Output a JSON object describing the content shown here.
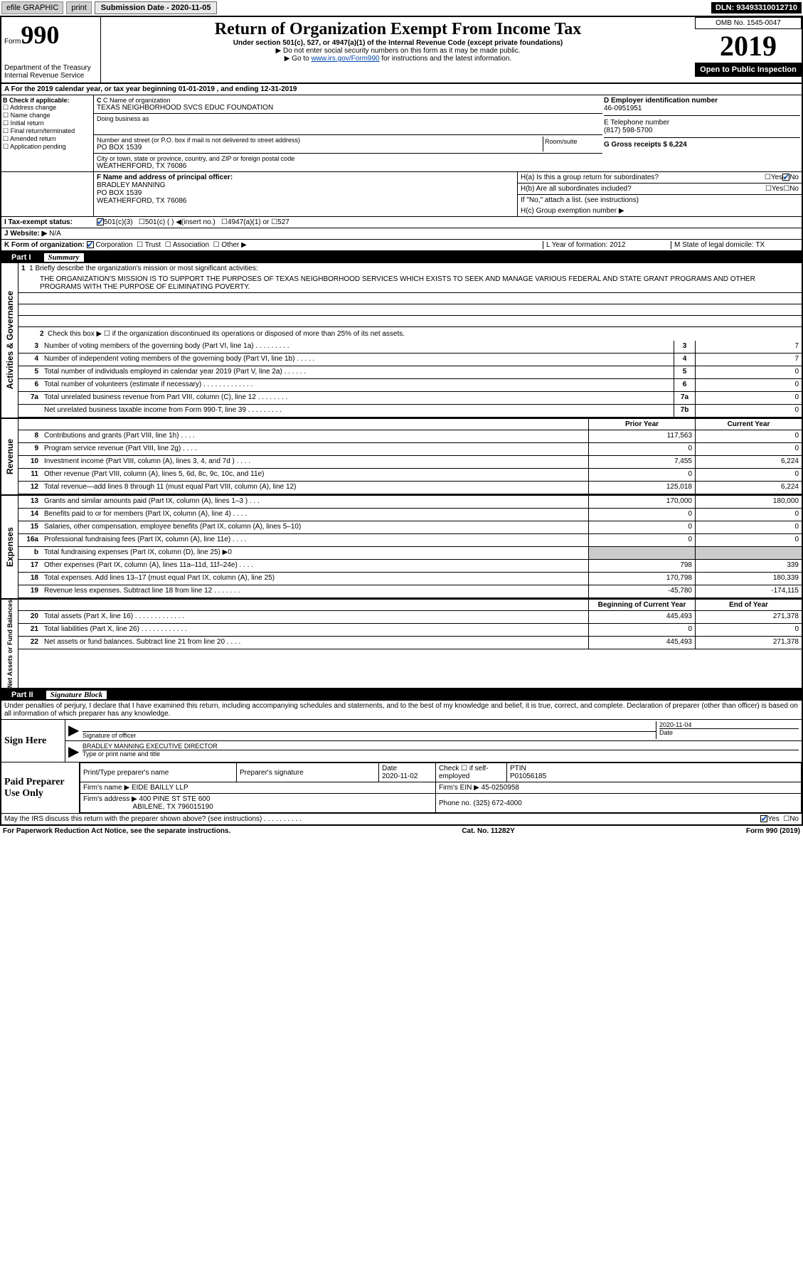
{
  "toolbar": {
    "efile": "efile GRAPHIC",
    "print": "print",
    "sub_label": "Submission Date - 2020-11-05",
    "dln": "DLN: 93493310012710"
  },
  "header": {
    "form_prefix": "Form",
    "form_num": "990",
    "dept": "Department of the Treasury\nInternal Revenue Service",
    "title": "Return of Organization Exempt From Income Tax",
    "sub1": "Under section 501(c), 527, or 4947(a)(1) of the Internal Revenue Code (except private foundations)",
    "sub2": "▶ Do not enter social security numbers on this form as it may be made public.",
    "sub3_pre": "▶ Go to ",
    "sub3_link": "www.irs.gov/Form990",
    "sub3_post": " for instructions and the latest information.",
    "omb": "OMB No. 1545-0047",
    "year": "2019",
    "open": "Open to Public Inspection"
  },
  "line_a": "A For the 2019 calendar year, or tax year beginning 01-01-2019   , and ending 12-31-2019",
  "sec_b": {
    "label": "B Check if applicable:",
    "opts": [
      "Address change",
      "Name change",
      "Initial return",
      "Final return/terminated",
      "Amended return",
      "Application pending"
    ],
    "c_label": "C Name of organization",
    "c_name": "TEXAS NEIGHBORHOOD SVCS EDUC FOUNDATION",
    "dba_label": "Doing business as",
    "addr_label": "Number and street (or P.O. box if mail is not delivered to street address)",
    "room_label": "Room/suite",
    "addr": "PO BOX 1539",
    "city_label": "City or town, state or province, country, and ZIP or foreign postal code",
    "city": "WEATHERFORD, TX  76086",
    "d_label": "D Employer identification number",
    "d_val": "46-0951951",
    "e_label": "E Telephone number",
    "e_val": "(817) 598-5700",
    "g_label": "G Gross receipts $ 6,224",
    "f_label": "F  Name and address of principal officer:",
    "f_name": "BRADLEY MANNING",
    "f_addr1": "PO BOX 1539",
    "f_addr2": "WEATHERFORD, TX  76086"
  },
  "h_section": {
    "ha": "H(a)  Is this a group return for subordinates?",
    "ha_no_checked": true,
    "hb": "H(b)  Are all subordinates included?",
    "hb_note": "If \"No,\" attach a list. (see instructions)",
    "hc": "H(c)  Group exemption number ▶"
  },
  "status": {
    "i_label": "I  Tax-exempt status:",
    "i_501c3_checked": true,
    "opts": [
      "501(c)(3)",
      "501(c) (  ) ◀(insert no.)",
      "4947(a)(1) or",
      "527"
    ],
    "j_label": "J  Website: ▶",
    "j_val": "N/A",
    "k_label": "K Form of organization:",
    "k_corp_checked": true,
    "k_opts": [
      "Corporation",
      "Trust",
      "Association",
      "Other ▶"
    ],
    "l_label": "L Year of formation: 2012",
    "m_label": "M State of legal domicile: TX"
  },
  "part1": {
    "num": "Part I",
    "title": "Summary",
    "q1_label": "1  Briefly describe the organization's mission or most significant activities:",
    "q1_text": "THE ORGANIZATION'S MISSION IS TO SUPPORT THE PURPOSES OF TEXAS NEIGHBORHOOD SERVICES WHICH EXISTS TO SEEK AND MANAGE VARIOUS FEDERAL AND STATE GRANT PROGRAMS AND OTHER PROGRAMS WITH THE PURPOSE OF ELIMINATING POVERTY.",
    "q2": "Check this box ▶ ☐  if the organization discontinued its operations or disposed of more than 25% of its net assets.",
    "gov_label": "Activities & Governance",
    "gov_rows": [
      {
        "n": "3",
        "d": "Number of voting members of the governing body (Part VI, line 1a)  .   .   .   .   .   .   .   .   .",
        "b": "3",
        "v": "7"
      },
      {
        "n": "4",
        "d": "Number of independent voting members of the governing body (Part VI, line 1b)  .   .   .   .   .",
        "b": "4",
        "v": "7"
      },
      {
        "n": "5",
        "d": "Total number of individuals employed in calendar year 2019 (Part V, line 2a)  .   .   .   .   .   .",
        "b": "5",
        "v": "0"
      },
      {
        "n": "6",
        "d": "Total number of volunteers (estimate if necessary)   .   .   .   .   .   .   .   .   .   .   .   .   .",
        "b": "6",
        "v": "0"
      },
      {
        "n": "7a",
        "d": "Total unrelated business revenue from Part VIII, column (C), line 12  .   .   .   .   .   .   .   .",
        "b": "7a",
        "v": "0"
      },
      {
        "n": "",
        "d": "Net unrelated business taxable income from Form 990-T, line 39   .   .   .   .   .   .   .   .   .",
        "b": "7b",
        "v": "0"
      }
    ],
    "rev_label": "Revenue",
    "col_prior": "Prior Year",
    "col_current": "Current Year",
    "rev_rows": [
      {
        "n": "8",
        "d": "Contributions and grants (Part VIII, line 1h)   .   .   .   .",
        "p": "117,563",
        "c": "0"
      },
      {
        "n": "9",
        "d": "Program service revenue (Part VIII, line 2g)   .   .   .   .",
        "p": "0",
        "c": "0"
      },
      {
        "n": "10",
        "d": "Investment income (Part VIII, column (A), lines 3, 4, and 7d )   .   .   .   .",
        "p": "7,455",
        "c": "6,224"
      },
      {
        "n": "11",
        "d": "Other revenue (Part VIII, column (A), lines 5, 6d, 8c, 9c, 10c, and 11e)",
        "p": "0",
        "c": "0"
      },
      {
        "n": "12",
        "d": "Total revenue—add lines 8 through 11 (must equal Part VIII, column (A), line 12)",
        "p": "125,018",
        "c": "6,224"
      }
    ],
    "exp_label": "Expenses",
    "exp_rows": [
      {
        "n": "13",
        "d": "Grants and similar amounts paid (Part IX, column (A), lines 1–3 )   .   .   .",
        "p": "170,000",
        "c": "180,000"
      },
      {
        "n": "14",
        "d": "Benefits paid to or for members (Part IX, column (A), line 4)   .   .   .   .",
        "p": "0",
        "c": "0"
      },
      {
        "n": "15",
        "d": "Salaries, other compensation, employee benefits (Part IX, column (A), lines 5–10)",
        "p": "0",
        "c": "0"
      },
      {
        "n": "16a",
        "d": "Professional fundraising fees (Part IX, column (A), line 11e)   .   .   .   .",
        "p": "0",
        "c": "0"
      },
      {
        "n": "b",
        "d": "Total fundraising expenses (Part IX, column (D), line 25) ▶0",
        "p": "",
        "c": "",
        "shaded": true
      },
      {
        "n": "17",
        "d": "Other expenses (Part IX, column (A), lines 11a–11d, 11f–24e)   .   .   .   .",
        "p": "798",
        "c": "339"
      },
      {
        "n": "18",
        "d": "Total expenses. Add lines 13–17 (must equal Part IX, column (A), line 25)",
        "p": "170,798",
        "c": "180,339"
      },
      {
        "n": "19",
        "d": "Revenue less expenses. Subtract line 18 from line 12  .   .   .   .   .   .   .",
        "p": "-45,780",
        "c": "-174,115"
      }
    ],
    "net_label": "Net Assets or Fund Balances",
    "col_begin": "Beginning of Current Year",
    "col_end": "End of Year",
    "net_rows": [
      {
        "n": "20",
        "d": "Total assets (Part X, line 16)  .   .   .   .   .   .   .   .   .   .   .   .   .",
        "p": "445,493",
        "c": "271,378"
      },
      {
        "n": "21",
        "d": "Total liabilities (Part X, line 26)  .   .   .   .   .   .   .   .   .   .   .   .",
        "p": "0",
        "c": "0"
      },
      {
        "n": "22",
        "d": "Net assets or fund balances. Subtract line 21 from line 20  .   .   .   .",
        "p": "445,493",
        "c": "271,378"
      }
    ]
  },
  "part2": {
    "num": "Part II",
    "title": "Signature Block",
    "decl": "Under penalties of perjury, I declare that I have examined this return, including accompanying schedules and statements, and to the best of my knowledge and belief, it is true, correct, and complete. Declaration of preparer (other than officer) is based on all information of which preparer has any knowledge.",
    "sign_here": "Sign Here",
    "sig_officer": "Signature of officer",
    "sig_date": "2020-11-04",
    "sig_date_label": "Date",
    "sig_name": "BRADLEY MANNING EXECUTIVE DIRECTOR",
    "sig_name_label": "Type or print name and title",
    "paid_prep": "Paid Preparer Use Only",
    "prep_name_label": "Print/Type preparer's name",
    "prep_sig_label": "Preparer's signature",
    "prep_date_label": "Date",
    "prep_date": "2020-11-02",
    "prep_check_label": "Check ☐ if self-employed",
    "ptin_label": "PTIN",
    "ptin": "P01056185",
    "firm_name_label": "Firm's name    ▶",
    "firm_name": "EIDE BAILLY LLP",
    "firm_ein_label": "Firm's EIN ▶",
    "firm_ein": "45-0250958",
    "firm_addr_label": "Firm's address ▶",
    "firm_addr": "400 PINE ST STE 600",
    "firm_addr2": "ABILENE, TX  796015190",
    "phone_label": "Phone no.",
    "phone": "(325) 672-4000",
    "discuss": "May the IRS discuss this return with the preparer shown above? (see instructions)   .   .   .   .   .   .   .   .   .   .",
    "discuss_yes_checked": true
  },
  "footer": {
    "paperwork": "For Paperwork Reduction Act Notice, see the separate instructions.",
    "cat": "Cat. No. 11282Y",
    "form": "Form 990 (2019)"
  }
}
